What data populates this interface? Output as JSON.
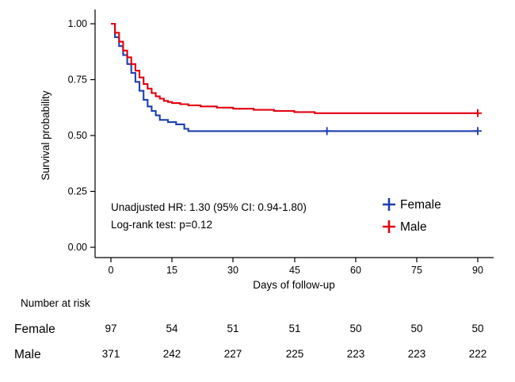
{
  "chart_data": {
    "type": "line",
    "subtype": "kaplan-meier-step",
    "title": "",
    "xlabel": "Days of follow-up",
    "ylabel": "Survival probability",
    "xlim": [
      0,
      90
    ],
    "ylim": [
      0.0,
      1.0
    ],
    "xticks": [
      0,
      15,
      30,
      45,
      60,
      75,
      90
    ],
    "yticks": [
      1.0,
      0.75,
      0.5,
      0.25,
      0.0
    ],
    "xtick_labels": [
      "0",
      "15",
      "30",
      "45",
      "60",
      "75",
      "90"
    ],
    "ytick_labels": [
      "1.00",
      "0.75",
      "0.50",
      "0.25",
      "0.00"
    ],
    "grid": false,
    "legend_position": "inside-right",
    "colors": {
      "female": "#1d3fae",
      "male": "#e4000f"
    },
    "legend": {
      "entries": [
        "Female",
        "Male"
      ]
    },
    "annotations": [
      "Unadjusted HR: 1.30 (95% CI: 0.94-1.80)",
      "Log-rank test: p=0.12"
    ],
    "series": [
      {
        "name": "Female",
        "color": "#1d3fae",
        "steps": [
          [
            0,
            1.0
          ],
          [
            1,
            0.94
          ],
          [
            2,
            0.9
          ],
          [
            3,
            0.86
          ],
          [
            4,
            0.82
          ],
          [
            5,
            0.78
          ],
          [
            6,
            0.74
          ],
          [
            7,
            0.7
          ],
          [
            8,
            0.66
          ],
          [
            9,
            0.63
          ],
          [
            10,
            0.61
          ],
          [
            11,
            0.59
          ],
          [
            12,
            0.57
          ],
          [
            14,
            0.56
          ],
          [
            16,
            0.55
          ],
          [
            18,
            0.53
          ],
          [
            19,
            0.52
          ],
          [
            90,
            0.52
          ]
        ],
        "censor_marks": [
          [
            53,
            0.52
          ],
          [
            90,
            0.52
          ]
        ]
      },
      {
        "name": "Male",
        "color": "#e4000f",
        "steps": [
          [
            0,
            1.0
          ],
          [
            1,
            0.96
          ],
          [
            2,
            0.92
          ],
          [
            3,
            0.88
          ],
          [
            4,
            0.85
          ],
          [
            5,
            0.82
          ],
          [
            6,
            0.79
          ],
          [
            7,
            0.76
          ],
          [
            8,
            0.73
          ],
          [
            9,
            0.71
          ],
          [
            10,
            0.69
          ],
          [
            11,
            0.675
          ],
          [
            12,
            0.665
          ],
          [
            13,
            0.655
          ],
          [
            14,
            0.65
          ],
          [
            15,
            0.645
          ],
          [
            17,
            0.64
          ],
          [
            19,
            0.635
          ],
          [
            22,
            0.63
          ],
          [
            26,
            0.625
          ],
          [
            30,
            0.62
          ],
          [
            35,
            0.615
          ],
          [
            40,
            0.61
          ],
          [
            45,
            0.605
          ],
          [
            50,
            0.6
          ],
          [
            90,
            0.6
          ]
        ],
        "censor_marks": [
          [
            90,
            0.6
          ]
        ]
      }
    ]
  },
  "risk_table": {
    "title": "Number at risk",
    "columns": [
      "0",
      "15",
      "30",
      "45",
      "60",
      "75",
      "90"
    ],
    "rows": [
      {
        "label": "Female",
        "values": [
          "97",
          "54",
          "51",
          "51",
          "50",
          "50",
          "50"
        ]
      },
      {
        "label": "Male",
        "values": [
          "371",
          "242",
          "227",
          "225",
          "223",
          "223",
          "222"
        ]
      }
    ]
  }
}
